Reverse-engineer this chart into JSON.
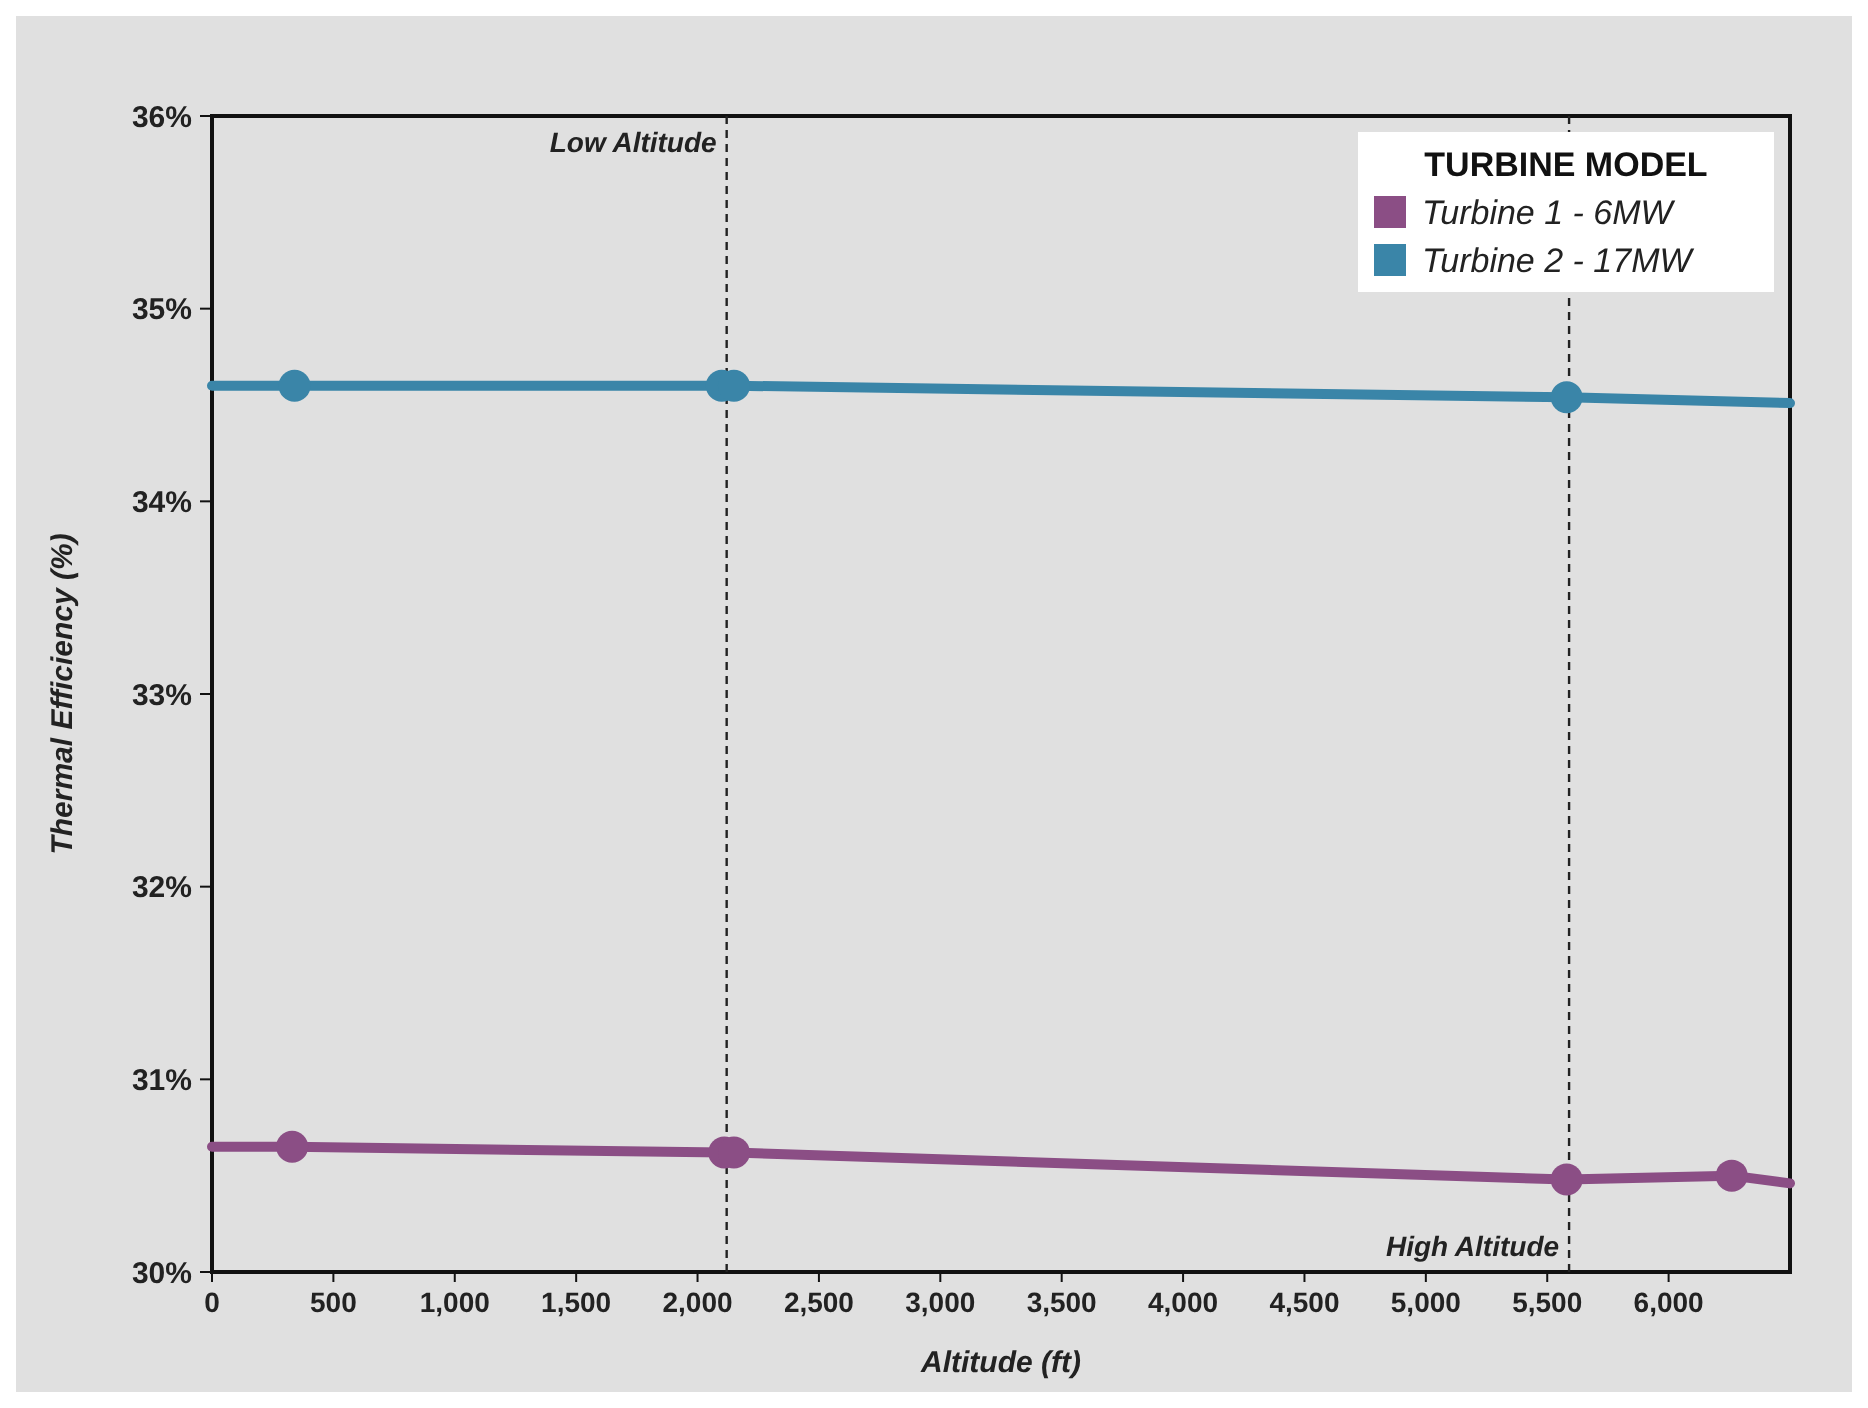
{
  "chart_data": {
    "type": "line",
    "xlabel": "Altitude (ft)",
    "ylabel": "Thermal Efficiency (%)",
    "legend_title": "TURBINE MODEL",
    "legend": "top right",
    "grid": false,
    "xlim": [
      0,
      6500
    ],
    "xticks": [
      0,
      500,
      {
        "value": 1000,
        "label": "1,000"
      },
      {
        "value": 1500,
        "label": "1,500"
      },
      {
        "value": 2000,
        "label": "2,000"
      },
      {
        "value": 2500,
        "label": "2,500"
      },
      {
        "value": 3000,
        "label": "3,000"
      },
      {
        "value": 3500,
        "label": "3,500"
      },
      {
        "value": 4000,
        "label": "4,000"
      },
      {
        "value": 4500,
        "label": "4,500"
      },
      {
        "value": 5000,
        "label": "5,000"
      },
      {
        "value": 5500,
        "label": "5,500"
      },
      {
        "value": 6000,
        "label": "6,000"
      }
    ],
    "ylim": [
      30,
      36
    ],
    "yticks": [
      {
        "value": 30,
        "label": "30%"
      },
      {
        "value": 31,
        "label": "31%"
      },
      {
        "value": 32,
        "label": "32%"
      },
      {
        "value": 33,
        "label": "33%"
      },
      {
        "value": 34,
        "label": "34%"
      },
      {
        "value": 35,
        "label": "35%"
      },
      {
        "value": 36,
        "label": "36%"
      }
    ],
    "series": [
      {
        "name": "Turbine 1 - 6MW",
        "color": "#8b4e85",
        "marker": "none",
        "x": [
          0,
          330,
          2110,
          2150,
          5580,
          6260,
          6500
        ],
        "values": [
          30.65,
          30.65,
          30.62,
          30.62,
          30.48,
          30.5,
          30.46
        ]
      },
      {
        "name": "Turbine 2 - 17MW",
        "color": "#3a85a8",
        "marker": "none",
        "x": [
          0,
          340,
          2100,
          2150,
          5580,
          6500
        ],
        "values": [
          34.6,
          34.6,
          34.6,
          34.6,
          34.54,
          34.51
        ]
      },
      {
        "type": "scatter",
        "color": "#8b4e85",
        "marker": "circle",
        "x": [
          330,
          2110,
          2150,
          5580,
          6260
        ],
        "values": [
          30.65,
          30.62,
          30.62,
          30.48,
          30.5
        ]
      },
      {
        "type": "scatter",
        "color": "#3a85a8",
        "marker": "circle",
        "x": [
          340,
          2100,
          2150,
          5580
        ],
        "values": [
          34.6,
          34.6,
          34.6,
          34.54
        ]
      }
    ],
    "ref_lines": [
      {
        "axis": "x",
        "value": 2120,
        "label": "Low Altitude",
        "color": "#222222",
        "line_style": "dashed"
      },
      {
        "axis": "x",
        "value": 5590,
        "label": "High Altitude",
        "color": "#222222",
        "line_style": "dashed"
      }
    ]
  }
}
